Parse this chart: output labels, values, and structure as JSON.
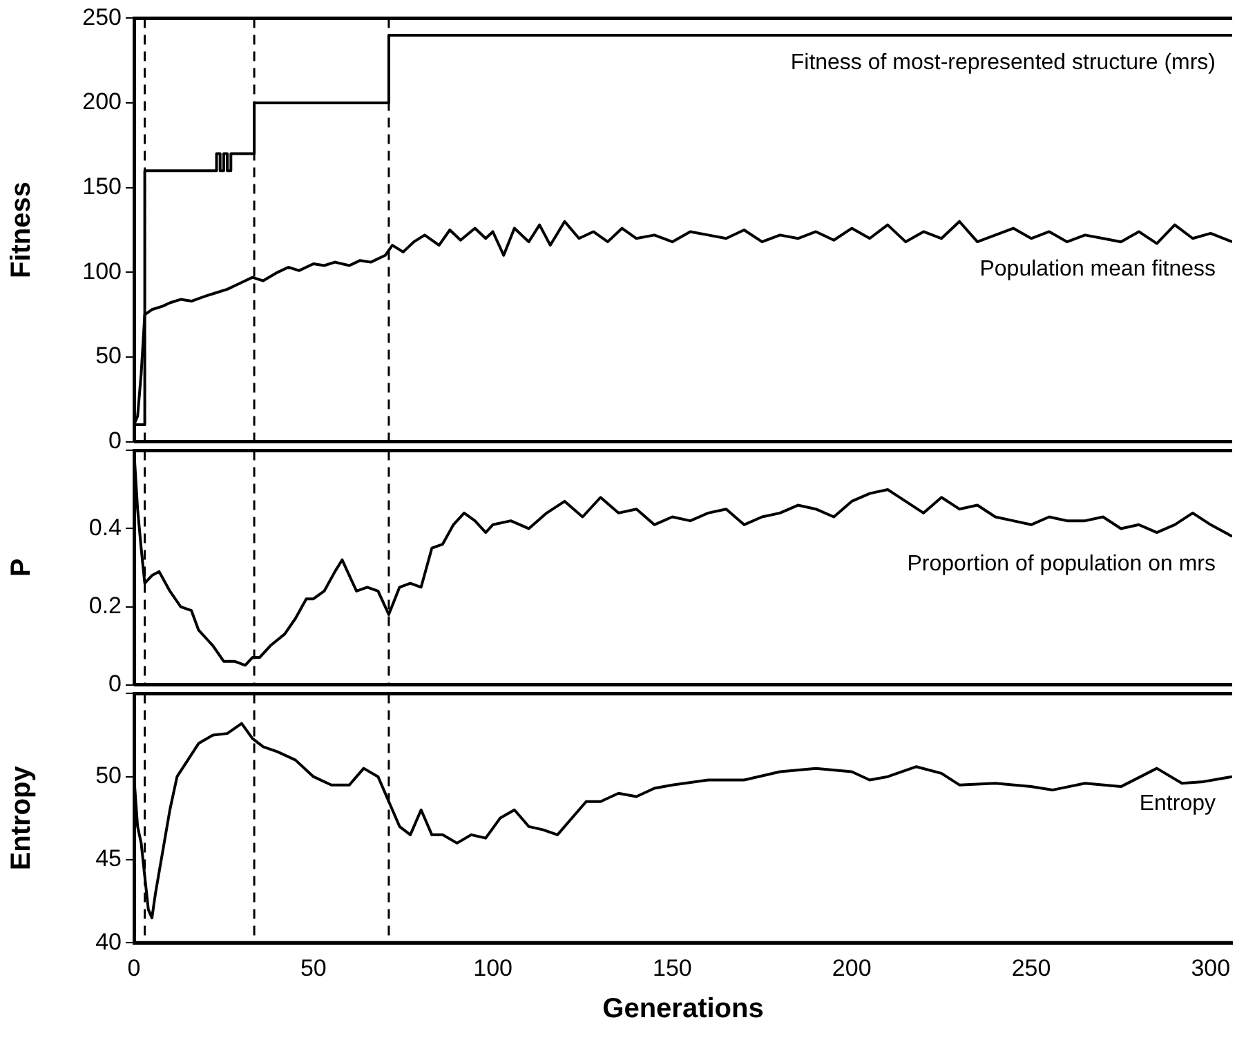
{
  "chart_data": [
    {
      "type": "line",
      "ylabel": "Fitness",
      "xlim": [
        0,
        306
      ],
      "xticks": [
        0,
        50,
        100,
        150,
        200,
        250,
        300
      ],
      "ylim": [
        0,
        250
      ],
      "yticks": [
        0,
        50,
        100,
        150,
        200,
        250
      ],
      "tick_labels": "y",
      "marker": "none",
      "line_style": "solid",
      "ref_lines": [
        {
          "axis": "x",
          "value": 3,
          "color": "#000000",
          "line_style": "dashed"
        },
        {
          "axis": "x",
          "value": 33.5,
          "color": "#000000",
          "line_style": "dashed"
        },
        {
          "axis": "x",
          "value": 71,
          "color": "#000000",
          "line_style": "dashed"
        }
      ],
      "series": [
        {
          "type": "step",
          "name": "Fitness of most-represented structure (mrs)",
          "color": "#000000",
          "x": [
            0,
            3,
            23,
            24,
            25,
            26,
            27,
            33.5,
            71,
            306
          ],
          "values": [
            10,
            160,
            170,
            160,
            170,
            160,
            170,
            200,
            240,
            240
          ]
        },
        {
          "type": "line",
          "name": "Population mean fitness",
          "color": "#000000",
          "x": [
            0,
            1,
            2,
            3,
            5,
            8,
            10,
            13,
            16,
            20,
            23,
            26,
            30,
            33,
            36,
            40,
            43,
            46,
            50,
            53,
            56,
            60,
            63,
            66,
            70,
            72,
            75,
            78,
            81,
            85,
            88,
            91,
            95,
            98,
            100,
            103,
            106,
            110,
            113,
            116,
            120,
            124,
            128,
            132,
            136,
            140,
            145,
            150,
            155,
            160,
            165,
            170,
            175,
            180,
            185,
            190,
            195,
            200,
            205,
            210,
            215,
            220,
            225,
            230,
            235,
            240,
            245,
            250,
            255,
            260,
            265,
            270,
            275,
            280,
            285,
            290,
            295,
            300,
            306
          ],
          "values": [
            10,
            15,
            40,
            75,
            78,
            80,
            82,
            84,
            83,
            86,
            88,
            90,
            94,
            97,
            95,
            100,
            103,
            101,
            105,
            104,
            106,
            104,
            107,
            106,
            110,
            116,
            112,
            118,
            122,
            116,
            125,
            119,
            126,
            120,
            124,
            110,
            126,
            118,
            128,
            116,
            130,
            120,
            124,
            118,
            126,
            120,
            122,
            118,
            124,
            122,
            120,
            125,
            118,
            122,
            120,
            124,
            119,
            126,
            120,
            128,
            118,
            124,
            120,
            130,
            118,
            122,
            126,
            120,
            124,
            118,
            122,
            120,
            118,
            124,
            117,
            128,
            120,
            123,
            118
          ]
        }
      ]
    },
    {
      "type": "line",
      "ylabel": "P",
      "xlim": [
        0,
        306
      ],
      "xticks": [
        0,
        50,
        100,
        150,
        200,
        250,
        300
      ],
      "ylim": [
        0,
        0.6
      ],
      "yticks": [
        0,
        0.2,
        0.4,
        {
          "value": 0.6,
          "label": null
        }
      ],
      "tick_labels": "y",
      "marker": "none",
      "line_style": "solid",
      "ref_lines": [
        {
          "axis": "x",
          "value": 3,
          "color": "#000000",
          "line_style": "dashed"
        },
        {
          "axis": "x",
          "value": 33.5,
          "color": "#000000",
          "line_style": "dashed"
        },
        {
          "axis": "x",
          "value": 71,
          "color": "#000000",
          "line_style": "dashed"
        }
      ],
      "series": [
        {
          "type": "line",
          "name": "Proportion of population on mrs",
          "color": "#000000",
          "x": [
            0,
            1,
            2,
            3,
            5,
            7,
            10,
            13,
            16,
            18,
            20,
            22,
            25,
            28,
            31,
            33,
            35,
            38,
            42,
            45,
            48,
            50,
            53,
            56,
            58,
            60,
            62,
            65,
            68,
            71,
            74,
            77,
            80,
            83,
            86,
            89,
            92,
            95,
            98,
            100,
            105,
            110,
            115,
            120,
            125,
            130,
            135,
            140,
            145,
            150,
            155,
            160,
            165,
            170,
            175,
            180,
            185,
            190,
            195,
            200,
            205,
            210,
            215,
            220,
            225,
            230,
            235,
            240,
            245,
            250,
            255,
            260,
            265,
            270,
            275,
            280,
            285,
            290,
            295,
            300,
            306
          ],
          "values": [
            0.6,
            0.45,
            0.35,
            0.26,
            0.28,
            0.29,
            0.24,
            0.2,
            0.19,
            0.14,
            0.12,
            0.1,
            0.06,
            0.06,
            0.05,
            0.07,
            0.07,
            0.1,
            0.13,
            0.17,
            0.22,
            0.22,
            0.24,
            0.29,
            0.32,
            0.28,
            0.24,
            0.25,
            0.24,
            0.18,
            0.25,
            0.26,
            0.25,
            0.35,
            0.36,
            0.41,
            0.44,
            0.42,
            0.39,
            0.41,
            0.42,
            0.4,
            0.44,
            0.47,
            0.43,
            0.48,
            0.44,
            0.45,
            0.41,
            0.43,
            0.42,
            0.44,
            0.45,
            0.41,
            0.43,
            0.44,
            0.46,
            0.45,
            0.43,
            0.47,
            0.49,
            0.5,
            0.47,
            0.44,
            0.48,
            0.45,
            0.46,
            0.43,
            0.42,
            0.41,
            0.43,
            0.42,
            0.42,
            0.43,
            0.4,
            0.41,
            0.39,
            0.41,
            0.44,
            0.41,
            0.38
          ]
        }
      ]
    },
    {
      "type": "line",
      "xlabel": "Generations",
      "ylabel": "Entropy",
      "xlim": [
        0,
        306
      ],
      "xticks": [
        0,
        50,
        100,
        150,
        200,
        250,
        300
      ],
      "ylim": [
        40,
        55
      ],
      "yticks": [
        40,
        45,
        50,
        {
          "value": 55,
          "label": null
        }
      ],
      "marker": "none",
      "line_style": "solid",
      "ref_lines": [
        {
          "axis": "x",
          "value": 3,
          "color": "#000000",
          "line_style": "dashed"
        },
        {
          "axis": "x",
          "value": 33.5,
          "color": "#000000",
          "line_style": "dashed"
        },
        {
          "axis": "x",
          "value": 71,
          "color": "#000000",
          "line_style": "dashed"
        }
      ],
      "series": [
        {
          "type": "line",
          "name": "Entropy",
          "color": "#000000",
          "x": [
            0,
            1,
            2,
            3,
            4,
            5,
            6,
            8,
            10,
            12,
            15,
            18,
            22,
            26,
            30,
            33,
            36,
            40,
            45,
            50,
            55,
            60,
            64,
            68,
            71,
            74,
            77,
            80,
            83,
            86,
            90,
            94,
            98,
            102,
            106,
            110,
            114,
            118,
            122,
            126,
            130,
            135,
            140,
            145,
            150,
            160,
            170,
            180,
            190,
            200,
            205,
            210,
            218,
            225,
            230,
            240,
            250,
            256,
            265,
            275,
            285,
            292,
            298,
            306
          ],
          "values": [
            50,
            47,
            46,
            44,
            42,
            41.5,
            43,
            45.5,
            48,
            50,
            51,
            52,
            52.5,
            52.6,
            53.2,
            52.3,
            51.8,
            51.5,
            51,
            50,
            49.5,
            49.5,
            50.5,
            50,
            48.5,
            47,
            46.5,
            48,
            46.5,
            46.5,
            46,
            46.5,
            46.3,
            47.5,
            48,
            47,
            46.8,
            46.5,
            47.5,
            48.5,
            48.5,
            49,
            48.8,
            49.3,
            49.5,
            49.8,
            49.8,
            50.3,
            50.5,
            50.3,
            49.8,
            50,
            50.6,
            50.2,
            49.5,
            49.6,
            49.4,
            49.2,
            49.6,
            49.4,
            50.5,
            49.6,
            49.7,
            50
          ]
        }
      ]
    }
  ]
}
